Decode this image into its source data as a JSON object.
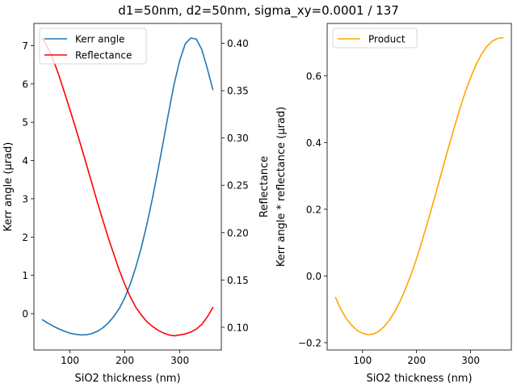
{
  "figure": {
    "title": "d1=50nm, d2=50nm, sigma_xy=0.0001 / 137"
  },
  "chart_data": [
    {
      "type": "line",
      "xlabel": "SiO2 thickness (nm)",
      "ylabel": "Kerr angle (µrad)",
      "ylabel_right": "Reflectance",
      "xlim": [
        34.5,
        375.5
      ],
      "ylim": [
        -0.95,
        7.58
      ],
      "ylim_right": [
        0.076,
        0.421
      ],
      "xticks": [
        100,
        200,
        300
      ],
      "yticks": [
        0,
        1,
        2,
        3,
        4,
        5,
        6,
        7
      ],
      "yticks_right": [
        0.1,
        0.15,
        0.2,
        0.25,
        0.3,
        0.35,
        0.4
      ],
      "legend": "top-left",
      "grid": false,
      "series": [
        {
          "name": "Kerr angle",
          "axis": "left",
          "color": "#1f77b4",
          "x": [
            50,
            60,
            70,
            80,
            90,
            100,
            110,
            120,
            130,
            140,
            150,
            160,
            170,
            180,
            190,
            200,
            210,
            220,
            230,
            240,
            250,
            260,
            270,
            280,
            290,
            300,
            310,
            320,
            330,
            340,
            350,
            360
          ],
          "y": [
            -0.16,
            -0.25,
            -0.33,
            -0.4,
            -0.46,
            -0.51,
            -0.54,
            -0.555,
            -0.55,
            -0.52,
            -0.46,
            -0.37,
            -0.24,
            -0.07,
            0.14,
            0.42,
            0.78,
            1.22,
            1.73,
            2.33,
            3.0,
            3.73,
            4.5,
            5.28,
            6.02,
            6.62,
            7.05,
            7.2,
            7.17,
            6.9,
            6.4,
            5.85
          ]
        },
        {
          "name": "Reflectance",
          "axis": "right",
          "color": "#ff0000",
          "x": [
            50,
            60,
            70,
            80,
            90,
            100,
            110,
            120,
            130,
            140,
            150,
            160,
            170,
            180,
            190,
            200,
            210,
            220,
            230,
            240,
            250,
            260,
            270,
            280,
            290,
            300,
            310,
            320,
            330,
            340,
            350,
            360
          ],
          "y": [
            0.405,
            0.395,
            0.382,
            0.366,
            0.348,
            0.33,
            0.311,
            0.292,
            0.272,
            0.252,
            0.232,
            0.213,
            0.194,
            0.177,
            0.16,
            0.145,
            0.132,
            0.121,
            0.113,
            0.106,
            0.101,
            0.097,
            0.094,
            0.092,
            0.091,
            0.092,
            0.093,
            0.095,
            0.098,
            0.103,
            0.111,
            0.121
          ]
        }
      ]
    },
    {
      "type": "line",
      "xlabel": "SiO2 thickness (nm)",
      "ylabel": "Kerr angle * reflectance (µrad)",
      "xlim": [
        34.5,
        375.5
      ],
      "ylim": [
        -0.222,
        0.757
      ],
      "xticks": [
        100,
        200,
        300
      ],
      "yticks": [
        -0.2,
        0.0,
        0.2,
        0.4,
        0.6
      ],
      "yticklabels": [
        "−0.2",
        "0.0",
        "0.2",
        "0.4",
        "0.6"
      ],
      "legend": "top-left",
      "grid": false,
      "series": [
        {
          "name": "Product",
          "color": "#ffa500",
          "x": [
            50,
            60,
            70,
            80,
            90,
            100,
            110,
            120,
            130,
            140,
            150,
            160,
            170,
            180,
            190,
            200,
            210,
            220,
            230,
            240,
            250,
            260,
            270,
            280,
            290,
            300,
            310,
            320,
            330,
            340,
            350,
            360
          ],
          "y": [
            -0.065,
            -0.1,
            -0.128,
            -0.148,
            -0.163,
            -0.172,
            -0.176,
            -0.174,
            -0.166,
            -0.152,
            -0.132,
            -0.106,
            -0.074,
            -0.037,
            0.005,
            0.052,
            0.104,
            0.158,
            0.215,
            0.273,
            0.332,
            0.39,
            0.446,
            0.5,
            0.55,
            0.594,
            0.633,
            0.664,
            0.688,
            0.704,
            0.712,
            0.714
          ]
        }
      ]
    }
  ]
}
